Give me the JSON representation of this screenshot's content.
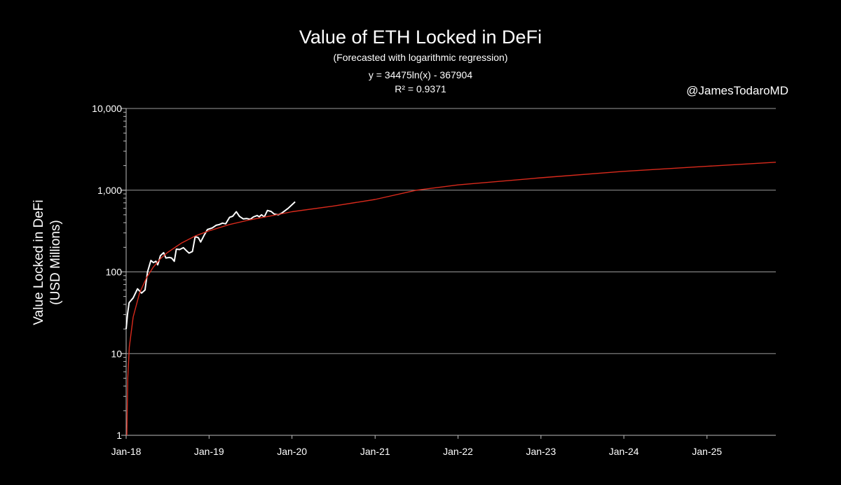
{
  "chart_data": {
    "type": "line",
    "title": "Value of ETH Locked in DeFi",
    "subtitle": "(Forecasted with logarithmic regression)",
    "equation": "y = 34475ln(x) - 367904",
    "r_squared": "R² = 0.9371",
    "watermark": "@JamesTodaroMD",
    "ylabel_line1": "Value Locked in DeFi",
    "ylabel_line2": "(USD Millions)",
    "y_scale": "log",
    "ylim": [
      1,
      10000
    ],
    "y_ticks": [
      1,
      10,
      100,
      1000,
      10000
    ],
    "y_tick_labels": [
      "1",
      "10",
      "100",
      "1,000",
      "10,000"
    ],
    "x_range": [
      "2018-01-01",
      "2025-10-31"
    ],
    "x_ticks": [
      "2018-01-01",
      "2019-01-01",
      "2020-01-01",
      "2021-01-01",
      "2022-01-01",
      "2023-01-01",
      "2024-01-01",
      "2025-01-01"
    ],
    "x_tick_labels": [
      "Jan-18",
      "Jan-19",
      "Jan-20",
      "Jan-21",
      "Jan-22",
      "Jan-23",
      "Jan-24",
      "Jan-25"
    ],
    "grid": "horizontal",
    "series": [
      {
        "color": "#ffffff",
        "kind": "data",
        "points": [
          [
            "2018-01-01",
            20
          ],
          [
            "2018-01-07",
            30
          ],
          [
            "2018-01-14",
            42
          ],
          [
            "2018-02-01",
            48
          ],
          [
            "2018-02-20",
            62
          ],
          [
            "2018-03-10",
            55
          ],
          [
            "2018-03-25",
            60
          ],
          [
            "2018-04-05",
            100
          ],
          [
            "2018-04-20",
            138
          ],
          [
            "2018-05-01",
            130
          ],
          [
            "2018-05-12",
            135
          ],
          [
            "2018-05-20",
            122
          ],
          [
            "2018-06-01",
            158
          ],
          [
            "2018-06-15",
            172
          ],
          [
            "2018-06-25",
            148
          ],
          [
            "2018-07-10",
            150
          ],
          [
            "2018-07-20",
            148
          ],
          [
            "2018-08-01",
            135
          ],
          [
            "2018-08-10",
            190
          ],
          [
            "2018-08-25",
            188
          ],
          [
            "2018-09-10",
            198
          ],
          [
            "2018-09-25",
            180
          ],
          [
            "2018-10-05",
            170
          ],
          [
            "2018-10-20",
            178
          ],
          [
            "2018-11-01",
            270
          ],
          [
            "2018-11-15",
            262
          ],
          [
            "2018-11-25",
            232
          ],
          [
            "2018-12-10",
            280
          ],
          [
            "2018-12-25",
            330
          ],
          [
            "2019-01-15",
            345
          ],
          [
            "2019-02-01",
            372
          ],
          [
            "2019-02-15",
            380
          ],
          [
            "2019-03-01",
            395
          ],
          [
            "2019-03-15",
            388
          ],
          [
            "2019-04-01",
            465
          ],
          [
            "2019-04-15",
            480
          ],
          [
            "2019-05-01",
            545
          ],
          [
            "2019-05-15",
            478
          ],
          [
            "2019-06-01",
            445
          ],
          [
            "2019-06-15",
            450
          ],
          [
            "2019-07-01",
            440
          ],
          [
            "2019-07-15",
            470
          ],
          [
            "2019-08-01",
            490
          ],
          [
            "2019-08-10",
            472
          ],
          [
            "2019-08-20",
            500
          ],
          [
            "2019-09-01",
            470
          ],
          [
            "2019-09-15",
            565
          ],
          [
            "2019-10-01",
            550
          ],
          [
            "2019-10-15",
            510
          ],
          [
            "2019-11-01",
            500
          ],
          [
            "2019-11-15",
            520
          ],
          [
            "2019-12-01",
            560
          ],
          [
            "2019-12-15",
            600
          ],
          [
            "2020-01-15",
            720
          ]
        ]
      },
      {
        "color": "#d92a1c",
        "kind": "logarithmic regression forecast",
        "points": [
          [
            "2018-01-04",
            1
          ],
          [
            "2018-01-08",
            5
          ],
          [
            "2018-01-15",
            12
          ],
          [
            "2018-02-01",
            28
          ],
          [
            "2018-03-01",
            55
          ],
          [
            "2018-04-01",
            85
          ],
          [
            "2018-05-01",
            115
          ],
          [
            "2018-06-01",
            145
          ],
          [
            "2018-07-01",
            172
          ],
          [
            "2018-09-01",
            225
          ],
          [
            "2018-11-01",
            275
          ],
          [
            "2019-01-01",
            318
          ],
          [
            "2019-04-01",
            380
          ],
          [
            "2019-07-01",
            435
          ],
          [
            "2019-10-01",
            485
          ],
          [
            "2020-01-01",
            545
          ],
          [
            "2020-07-01",
            640
          ],
          [
            "2021-01-01",
            770
          ],
          [
            "2021-07-01",
            1000
          ],
          [
            "2022-01-01",
            1160
          ],
          [
            "2023-01-01",
            1420
          ],
          [
            "2024-01-01",
            1700
          ],
          [
            "2025-01-01",
            1960
          ],
          [
            "2025-10-31",
            2200
          ]
        ]
      }
    ]
  }
}
